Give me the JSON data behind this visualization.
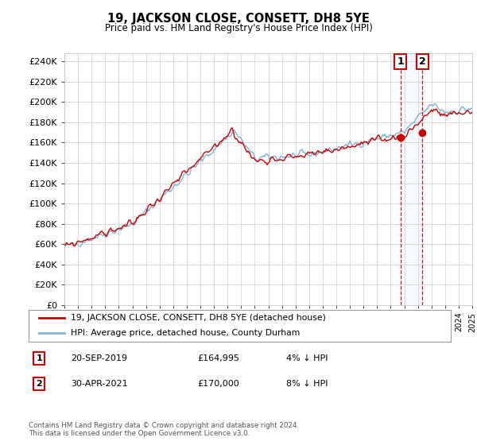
{
  "title": "19, JACKSON CLOSE, CONSETT, DH8 5YE",
  "subtitle": "Price paid vs. HM Land Registry's House Price Index (HPI)",
  "ylim": [
    0,
    240000
  ],
  "yticks": [
    0,
    20000,
    40000,
    60000,
    80000,
    100000,
    120000,
    140000,
    160000,
    180000,
    200000,
    220000,
    240000
  ],
  "line1_color": "#cc0000",
  "line2_color": "#7fb3d3",
  "marker1_color": "#cc0000",
  "vline_color": "#cc0000",
  "x1_year": 2019.72,
  "y1_val": 164995,
  "x2_year": 2021.33,
  "y2_val": 170000,
  "legend1": "19, JACKSON CLOSE, CONSETT, DH8 5YE (detached house)",
  "legend2": "HPI: Average price, detached house, County Durham",
  "footer": "Contains HM Land Registry data © Crown copyright and database right 2024.\nThis data is licensed under the Open Government Licence v3.0.",
  "xmin": 1995,
  "xmax": 2025,
  "background_color": "#ffffff",
  "grid_color": "#cccccc",
  "table_row1": [
    "1",
    "20-SEP-2019",
    "£164,995",
    "4% ↓ HPI"
  ],
  "table_row2": [
    "2",
    "30-APR-2021",
    "£170,000",
    "8% ↓ HPI"
  ]
}
